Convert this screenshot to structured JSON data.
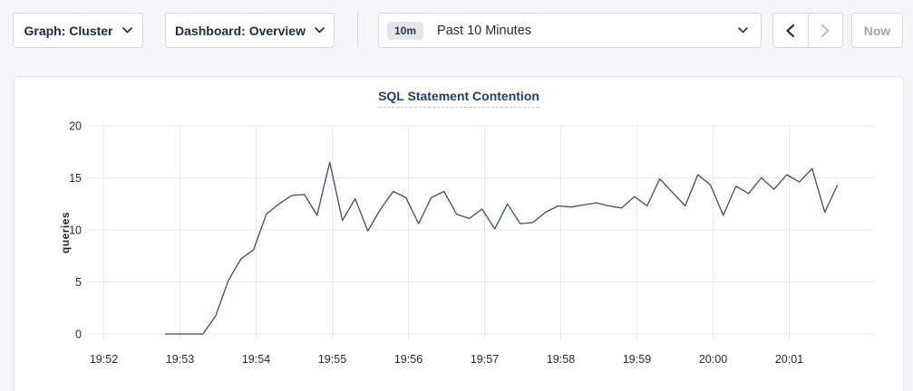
{
  "toolbar": {
    "graph_dropdown_label": "Graph: Cluster",
    "dashboard_dropdown_label": "Dashboard: Overview",
    "time_window_badge": "10m",
    "time_range_label": "Past 10 Minutes",
    "now_label": "Now"
  },
  "colors": {
    "series_line": "#3e4d6c",
    "title_text": "#21406b",
    "gridline": "#e9e9eb"
  },
  "chart_data": {
    "type": "line",
    "title": "SQL Statement Contention",
    "xlabel": "",
    "ylabel": "queries",
    "ylim": [
      0,
      20
    ],
    "yticks": [
      0,
      5,
      10,
      15,
      20
    ],
    "grid": true,
    "legend": "none",
    "x_axis_note": "t = seconds after 19:52:00",
    "xticks": [
      {
        "t": 0,
        "label": "19:52"
      },
      {
        "t": 60,
        "label": "19:53"
      },
      {
        "t": 120,
        "label": "19:54"
      },
      {
        "t": 180,
        "label": "19:55"
      },
      {
        "t": 240,
        "label": "19:56"
      },
      {
        "t": 300,
        "label": "19:57"
      },
      {
        "t": 360,
        "label": "19:58"
      },
      {
        "t": 420,
        "label": "19:59"
      },
      {
        "t": 480,
        "label": "20:00"
      },
      {
        "t": 540,
        "label": "20:01"
      }
    ],
    "series": [
      {
        "name": "queries",
        "color": "#3e4d6c",
        "points": [
          [
            48,
            0
          ],
          [
            58,
            0
          ],
          [
            68,
            0
          ],
          [
            78,
            0
          ],
          [
            88,
            1.7
          ],
          [
            98,
            5.1
          ],
          [
            108,
            7.2
          ],
          [
            118,
            8.1
          ],
          [
            128,
            11.5
          ],
          [
            138,
            12.5
          ],
          [
            148,
            13.3
          ],
          [
            158,
            13.4
          ],
          [
            168,
            11.4
          ],
          [
            178,
            16.5
          ],
          [
            188,
            10.9
          ],
          [
            198,
            13.0
          ],
          [
            208,
            9.9
          ],
          [
            218,
            12.0
          ],
          [
            228,
            13.7
          ],
          [
            238,
            13.1
          ],
          [
            248,
            10.6
          ],
          [
            258,
            13.1
          ],
          [
            268,
            13.7
          ],
          [
            278,
            11.5
          ],
          [
            288,
            11.1
          ],
          [
            298,
            12.0
          ],
          [
            308,
            10.1
          ],
          [
            318,
            12.5
          ],
          [
            328,
            10.6
          ],
          [
            338,
            10.7
          ],
          [
            348,
            11.7
          ],
          [
            358,
            12.3
          ],
          [
            368,
            12.2
          ],
          [
            378,
            12.4
          ],
          [
            388,
            12.6
          ],
          [
            398,
            12.3
          ],
          [
            408,
            12.1
          ],
          [
            418,
            13.2
          ],
          [
            428,
            12.3
          ],
          [
            438,
            14.9
          ],
          [
            448,
            13.6
          ],
          [
            458,
            12.3
          ],
          [
            468,
            15.3
          ],
          [
            478,
            14.3
          ],
          [
            488,
            11.4
          ],
          [
            498,
            14.2
          ],
          [
            508,
            13.5
          ],
          [
            518,
            15.0
          ],
          [
            528,
            13.9
          ],
          [
            538,
            15.3
          ],
          [
            548,
            14.6
          ],
          [
            558,
            15.9
          ],
          [
            568,
            11.7
          ],
          [
            578,
            14.3
          ]
        ]
      }
    ]
  }
}
